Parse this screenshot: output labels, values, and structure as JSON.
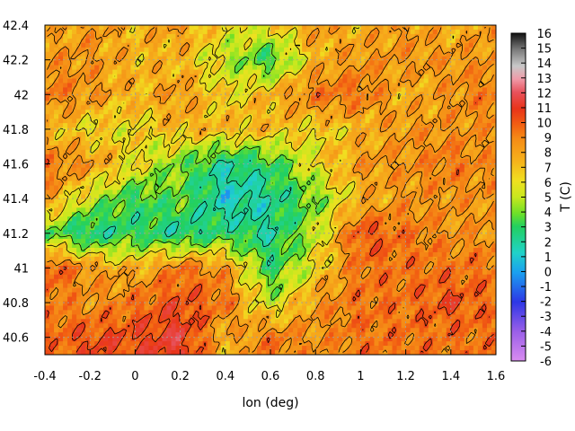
{
  "chart_data": {
    "type": "heatmap",
    "title": "",
    "xlabel": "lon (deg)",
    "ylabel": "",
    "colorbar_label": "T (C)",
    "xlim": [
      -0.4,
      1.6
    ],
    "ylim": [
      40.5,
      42.4
    ],
    "xticks": [
      "-0.4",
      "-0.2",
      "0",
      "0.2",
      "0.4",
      "0.6",
      "0.8",
      "1",
      "1.2",
      "1.4",
      "1.6"
    ],
    "yticks": [
      "40.6",
      "40.8",
      "41",
      "41.2",
      "41.4",
      "41.6",
      "41.8",
      "42",
      "42.2",
      "42.4"
    ],
    "colorbar_ticks": [
      "-6",
      "-5",
      "-4",
      "-3",
      "-2",
      "-1",
      "0",
      "1",
      "2",
      "3",
      "4",
      "5",
      "6",
      "7",
      "8",
      "9",
      "10",
      "11",
      "12",
      "13",
      "14",
      "15",
      "16"
    ],
    "value_range": [
      -6,
      16
    ],
    "grid": true,
    "contours": true,
    "description_of_field": {
      "lon": [
        -0.4,
        -0.2,
        0.0,
        0.2,
        0.4,
        0.6,
        0.8,
        1.0,
        1.2,
        1.4,
        1.6
      ],
      "lat": [
        42.4,
        42.2,
        42.0,
        41.8,
        41.6,
        41.4,
        41.2,
        41.0,
        40.8,
        40.6
      ],
      "values": [
        [
          7,
          8,
          7,
          8,
          6,
          6,
          8,
          7,
          8,
          7,
          8
        ],
        [
          8,
          8,
          7,
          7,
          5,
          3,
          7,
          8,
          8,
          8,
          8
        ],
        [
          9,
          8,
          7,
          8,
          6,
          7,
          9,
          9,
          7,
          8,
          9
        ],
        [
          7,
          6,
          6,
          7,
          7,
          7,
          6,
          7,
          8,
          8,
          8
        ],
        [
          9,
          8,
          6,
          4,
          2,
          3,
          6,
          8,
          8,
          9,
          8
        ],
        [
          8,
          5,
          3,
          4,
          1,
          2,
          4,
          7,
          8,
          8,
          8
        ],
        [
          4,
          2,
          3,
          2,
          3,
          2,
          5,
          10,
          9,
          8,
          8
        ],
        [
          10,
          8,
          7,
          9,
          8,
          3,
          6,
          9,
          9,
          9,
          9
        ],
        [
          9,
          8,
          9,
          10,
          9,
          5,
          8,
          9,
          9,
          10,
          9
        ],
        [
          9,
          10,
          10,
          11,
          7,
          9,
          8,
          9,
          9,
          9,
          9
        ]
      ]
    }
  }
}
